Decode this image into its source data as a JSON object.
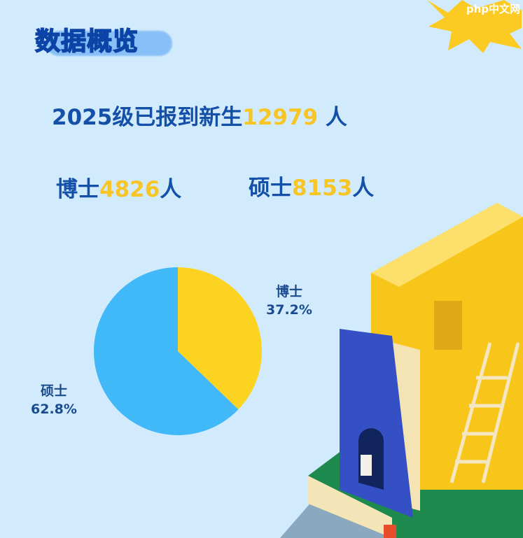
{
  "title": "数据概览",
  "summary": {
    "prefix": "2025级已报到新生",
    "total": "12979",
    "unit": " 人"
  },
  "doctoral": {
    "label": "博士",
    "count": "4826",
    "unit": "人"
  },
  "master": {
    "label": "硕士",
    "count": "8153",
    "unit": "人"
  },
  "watermark": "php中文网",
  "colors": {
    "text_blue": "#1450a8",
    "highlight_yellow": "#f7c526",
    "pie_blue": "#41b8f7",
    "pie_yellow": "#fdd321",
    "background": "#d2ebfc"
  },
  "chart_data": {
    "type": "pie",
    "slices": [
      {
        "label": "博士",
        "value": 37.2,
        "display": "37.2%",
        "color": "#fdd321"
      },
      {
        "label": "硕士",
        "value": 62.8,
        "display": "62.8%",
        "color": "#41b8f7"
      }
    ],
    "start_angle": "top, clockwise"
  }
}
